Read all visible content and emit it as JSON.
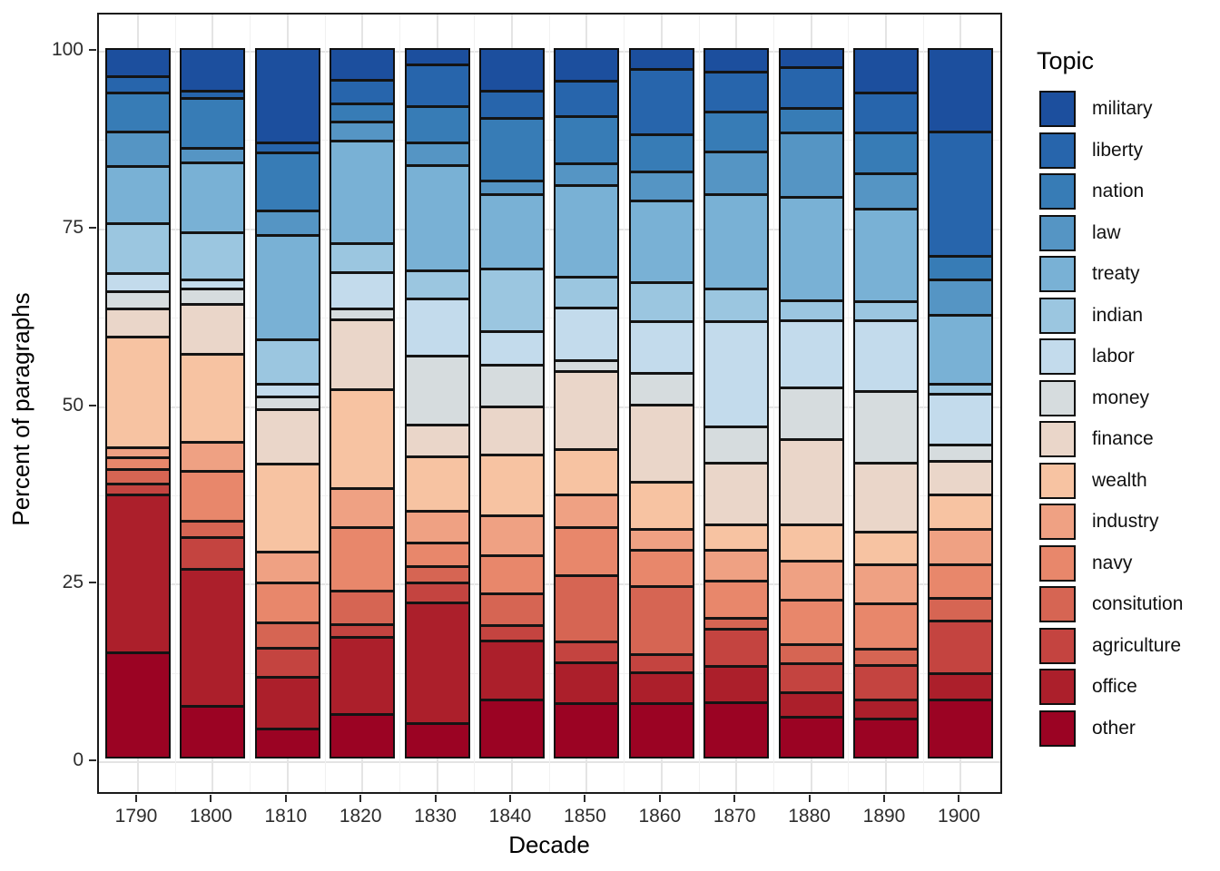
{
  "chart_data": {
    "type": "bar",
    "variant": "stacked-percent",
    "title": "",
    "xlabel": "Decade",
    "ylabel": "Percent of paragraphs",
    "legend_title": "Topic",
    "legend_position": "right",
    "grid": true,
    "ylim": [
      0,
      100
    ],
    "y_ticks": [
      "0",
      "25",
      "50",
      "75",
      "100"
    ],
    "y_tick_values": [
      0,
      25,
      50,
      75,
      100
    ],
    "categories": [
      "1790",
      "1800",
      "1810",
      "1820",
      "1830",
      "1840",
      "1850",
      "1860",
      "1870",
      "1880",
      "1890",
      "1900"
    ],
    "stack_order_top_to_bottom": [
      "military",
      "liberty",
      "nation",
      "law",
      "treaty",
      "indian",
      "labor",
      "money",
      "finance",
      "wealth",
      "industry",
      "navy",
      "consitution",
      "agriculture",
      "office",
      "other"
    ],
    "series": [
      {
        "name": "military",
        "color": "#1C4F9E",
        "values": [
          3.8,
          6.0,
          13.7,
          4.4,
          2.1,
          6.0,
          4.5,
          2.7,
          3.1,
          2.5,
          6.2,
          12.1
        ]
      },
      {
        "name": "liberty",
        "color": "#2765AC",
        "values": [
          2.0,
          0.7,
          1.1,
          3.1,
          5.8,
          3.7,
          4.9,
          9.4,
          5.6,
          5.7,
          5.7,
          18.3
        ]
      },
      {
        "name": "nation",
        "color": "#377CB6",
        "values": [
          5.5,
          7.0,
          8.3,
          2.3,
          5.1,
          8.9,
          6.7,
          5.2,
          5.6,
          3.2,
          5.7,
          3.1
        ]
      },
      {
        "name": "law",
        "color": "#5595C4",
        "values": [
          4.8,
          1.8,
          3.3,
          2.4,
          3.0,
          1.7,
          2.9,
          4.0,
          6.0,
          9.3,
          4.9,
          4.9
        ]
      },
      {
        "name": "treaty",
        "color": "#79B1D5",
        "values": [
          8.1,
          10.1,
          15.3,
          15.1,
          15.4,
          10.8,
          13.3,
          11.8,
          13.8,
          15.1,
          13.5,
          9.9
        ]
      },
      {
        "name": "indian",
        "color": "#9BC6E0",
        "values": [
          7.1,
          6.7,
          6.2,
          3.9,
          3.7,
          8.9,
          4.2,
          5.4,
          4.4,
          2.6,
          2.4,
          1.1
        ]
      },
      {
        "name": "labor",
        "color": "#C3DBEC",
        "values": [
          2.4,
          0.9,
          1.5,
          5.0,
          8.2,
          4.7,
          7.5,
          7.4,
          15.4,
          9.7,
          10.2,
          7.3
        ]
      },
      {
        "name": "money",
        "color": "#D6DCDE",
        "values": [
          2.1,
          1.9,
          1.6,
          1.2,
          10.0,
          5.8,
          1.2,
          4.4,
          5.1,
          7.4,
          10.4,
          2.0
        ]
      },
      {
        "name": "finance",
        "color": "#EAD6C9",
        "values": [
          3.9,
          7.1,
          7.7,
          10.2,
          4.3,
          6.9,
          11.4,
          11.1,
          8.8,
          12.3,
          9.9,
          4.6
        ]
      },
      {
        "name": "wealth",
        "color": "#F7C3A2",
        "values": [
          16.1,
          12.8,
          12.8,
          14.4,
          7.8,
          8.7,
          6.3,
          6.7,
          3.4,
          5.1,
          4.5,
          4.8
        ]
      },
      {
        "name": "industry",
        "color": "#EFA183",
        "values": [
          1.1,
          4.0,
          4.2,
          5.4,
          4.3,
          5.6,
          4.6,
          2.7,
          4.3,
          5.5,
          5.5,
          4.9
        ]
      },
      {
        "name": "navy",
        "color": "#E8876B",
        "values": [
          1.4,
          7.1,
          5.6,
          9.1,
          3.2,
          5.3,
          6.7,
          5.1,
          5.1,
          6.2,
          6.4,
          4.7
        ]
      },
      {
        "name": "consitution",
        "color": "#D66553",
        "values": [
          1.8,
          2.0,
          3.5,
          4.7,
          2.1,
          4.3,
          9.6,
          9.8,
          1.3,
          2.4,
          2.0,
          2.9
        ]
      },
      {
        "name": "agriculture",
        "color": "#C44440",
        "values": [
          1.2,
          4.4,
          3.9,
          1.5,
          2.5,
          2.0,
          2.7,
          2.3,
          5.1,
          4.0,
          4.8,
          7.6
        ]
      },
      {
        "name": "office",
        "color": "#AC1F2B",
        "values": [
          23.3,
          20.2,
          7.4,
          11.1,
          17.7,
          8.4,
          5.8,
          4.3,
          5.1,
          3.3,
          2.5,
          3.5
        ]
      },
      {
        "name": "other",
        "color": "#9B0323",
        "values": [
          15.4,
          7.3,
          3.9,
          6.2,
          4.8,
          8.3,
          7.7,
          7.7,
          7.9,
          5.7,
          5.4,
          8.3
        ]
      }
    ]
  }
}
